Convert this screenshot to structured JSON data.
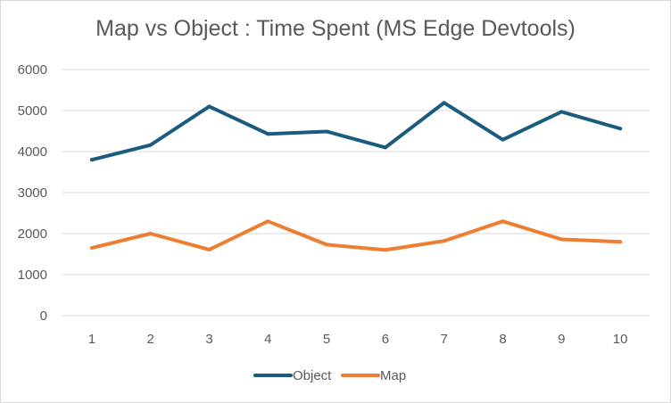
{
  "chart_data": {
    "type": "line",
    "title": "Map vs Object : Time Spent (MS Edge Devtools)",
    "xlabel": "",
    "ylabel": "",
    "categories": [
      "1",
      "2",
      "3",
      "4",
      "5",
      "6",
      "7",
      "8",
      "9",
      "10"
    ],
    "ylim": [
      0,
      6000
    ],
    "yticks": [
      "0",
      "1000",
      "2000",
      "3000",
      "4000",
      "5000",
      "6000"
    ],
    "grid": true,
    "legend_position": "bottom",
    "series": [
      {
        "name": "Object",
        "color": "#1b5b7f",
        "values": [
          3800,
          4160,
          5100,
          4430,
          4490,
          4100,
          5190,
          4290,
          4970,
          4560
        ]
      },
      {
        "name": "Map",
        "color": "#ed7d31",
        "values": [
          1650,
          2000,
          1610,
          2300,
          1730,
          1600,
          1820,
          2300,
          1860,
          1800
        ]
      }
    ]
  }
}
